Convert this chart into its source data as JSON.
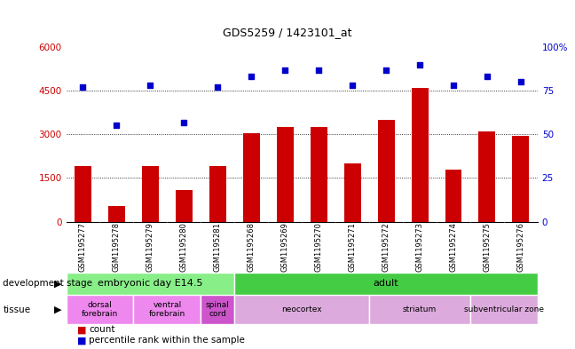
{
  "title": "GDS5259 / 1423101_at",
  "samples": [
    "GSM1195277",
    "GSM1195278",
    "GSM1195279",
    "GSM1195280",
    "GSM1195281",
    "GSM1195268",
    "GSM1195269",
    "GSM1195270",
    "GSM1195271",
    "GSM1195272",
    "GSM1195273",
    "GSM1195274",
    "GSM1195275",
    "GSM1195276"
  ],
  "counts": [
    1900,
    550,
    1900,
    1100,
    1900,
    3050,
    3250,
    3250,
    2000,
    3500,
    4600,
    1800,
    3100,
    2950
  ],
  "percentiles": [
    77,
    55,
    78,
    57,
    77,
    83,
    87,
    87,
    78,
    87,
    90,
    78,
    83,
    80
  ],
  "ylim_left": [
    0,
    6000
  ],
  "ylim_right": [
    0,
    100
  ],
  "yticks_left": [
    0,
    1500,
    3000,
    4500,
    6000
  ],
  "ytick_labels_left": [
    "0",
    "1500",
    "3000",
    "4500",
    "6000"
  ],
  "yticks_right": [
    0,
    25,
    50,
    75,
    100
  ],
  "ytick_labels_right": [
    "0",
    "25",
    "50",
    "75",
    "100%"
  ],
  "bar_color": "#cc0000",
  "dot_color": "#0000cc",
  "bg_color": "#d8d8d8",
  "plot_bg": "#ffffff",
  "development_stages": [
    {
      "label": "embryonic day E14.5",
      "start": 0,
      "end": 5,
      "color": "#88ee88"
    },
    {
      "label": "adult",
      "start": 5,
      "end": 14,
      "color": "#44cc44"
    }
  ],
  "tissues": [
    {
      "label": "dorsal\nforebrain",
      "start": 0,
      "end": 2,
      "color": "#ee88ee"
    },
    {
      "label": "ventral\nforebrain",
      "start": 2,
      "end": 4,
      "color": "#ee88ee"
    },
    {
      "label": "spinal\ncord",
      "start": 4,
      "end": 5,
      "color": "#cc55cc"
    },
    {
      "label": "neocortex",
      "start": 5,
      "end": 9,
      "color": "#ddaadd"
    },
    {
      "label": "striatum",
      "start": 9,
      "end": 12,
      "color": "#ddaadd"
    },
    {
      "label": "subventricular zone",
      "start": 12,
      "end": 14,
      "color": "#ddaadd"
    }
  ],
  "dev_stage_label": "development stage",
  "tissue_label": "tissue",
  "legend_count_label": "count",
  "legend_percentile_label": "percentile rank within the sample",
  "hgrid_vals": [
    1500,
    3000,
    4500
  ],
  "bar_width": 0.5,
  "dot_size": 20
}
